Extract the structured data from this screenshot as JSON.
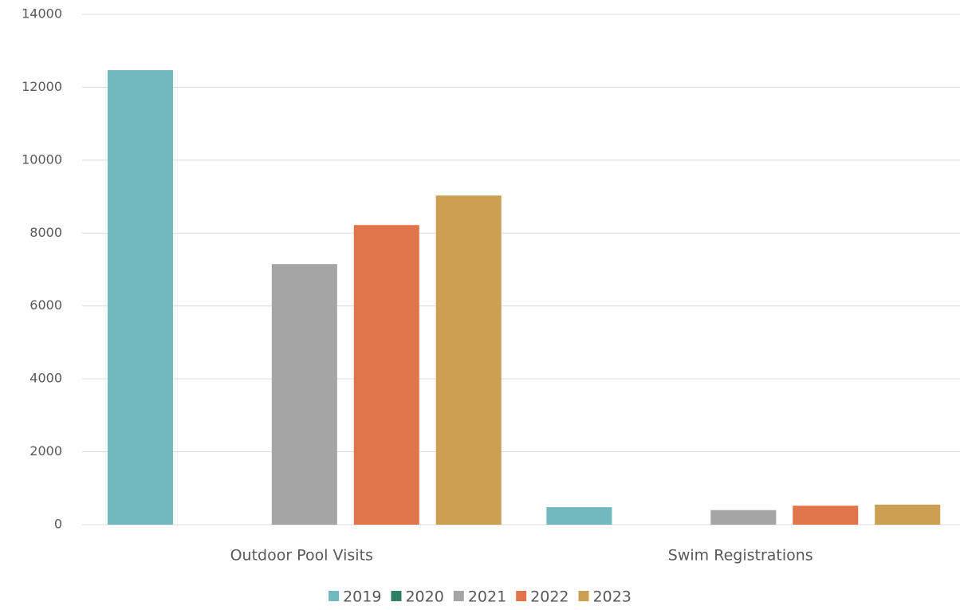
{
  "chart_data": {
    "type": "bar",
    "categories": [
      "Outdoor Pool Visits",
      "Swim Registrations"
    ],
    "series": [
      {
        "name": "2019",
        "color": "#72b9bf",
        "values": [
          12470,
          480
        ]
      },
      {
        "name": "2020",
        "color": "#2f7f62",
        "values": [
          0,
          0
        ]
      },
      {
        "name": "2021",
        "color": "#a5a5a5",
        "values": [
          7150,
          400
        ]
      },
      {
        "name": "2022",
        "color": "#e0754c",
        "values": [
          8220,
          520
        ]
      },
      {
        "name": "2023",
        "color": "#cca052",
        "values": [
          9030,
          550
        ]
      }
    ],
    "ylim": [
      0,
      14000
    ],
    "yticks": [
      0,
      2000,
      4000,
      6000,
      8000,
      10000,
      12000,
      14000
    ],
    "grid": true,
    "legend": "bottom"
  }
}
